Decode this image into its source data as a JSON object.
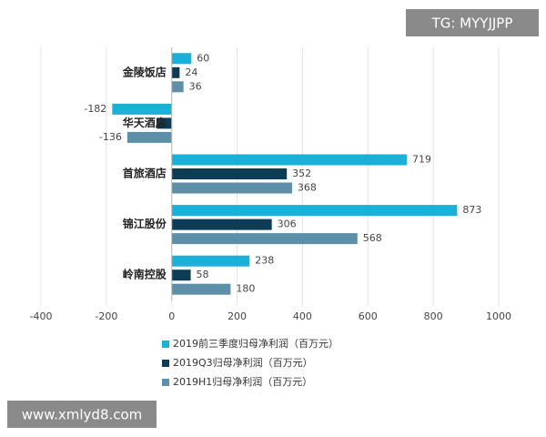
{
  "chart_data": {
    "type": "hbar",
    "categories": [
      "金陵饭店",
      "华天酒店",
      "首旅酒店",
      "锦江股份",
      "岭南控股"
    ],
    "series": [
      {
        "name": "2019前三季度归母净利润（百万元）",
        "color": "#1ab0d8",
        "values": [
          60,
          -182,
          719,
          873,
          238
        ]
      },
      {
        "name": "2019Q3归母净利润（百万元）",
        "color": "#0d3d56",
        "values": [
          24,
          -46,
          352,
          306,
          58
        ],
        "value_labels": [
          "24",
          null,
          "352",
          "306",
          "58"
        ]
      },
      {
        "name": "2019H1归母净利润（百万元）",
        "color": "#5d8fa8",
        "values": [
          36,
          -136,
          368,
          568,
          180
        ]
      }
    ],
    "xlim": [
      -400,
      1000
    ],
    "xticks": [
      -400,
      -200,
      0,
      200,
      400,
      600,
      800,
      1000
    ],
    "grid": true,
    "annotations": [
      "TG: MYYJJPP",
      "www.xmlyd8.com"
    ]
  }
}
